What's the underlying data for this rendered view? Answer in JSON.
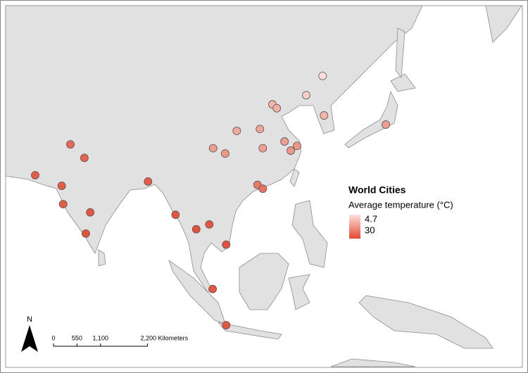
{
  "map": {
    "legend": {
      "title": "World Cities",
      "subtitle": "Average temperature (°C)",
      "range": [
        {
          "value": 4.7,
          "label": "4.7"
        },
        {
          "value": 30,
          "label": "30"
        }
      ],
      "colors": [
        "#fde0dd",
        "#e34a33"
      ]
    },
    "north": "N",
    "scale_bar": {
      "ticks": [
        0,
        550,
        {
          "value": 1100,
          "label": "1,100"
        },
        {
          "value": 2200,
          "label": "2,200 Kilometers"
        }
      ]
    },
    "cities": [
      {
        "lon": 126.6,
        "lat": 45.5,
        "temp": 5
      },
      {
        "lon": 123.2,
        "lat": 41.5,
        "temp": 8
      },
      {
        "lon": 116.2,
        "lat": 39.6,
        "temp": 12
      },
      {
        "lon": 117.1,
        "lat": 38.8,
        "temp": 13
      },
      {
        "lon": 126.9,
        "lat": 37.3,
        "temp": 12
      },
      {
        "lon": 139.7,
        "lat": 35.4,
        "temp": 16
      },
      {
        "lon": 108.8,
        "lat": 34.1,
        "temp": 14
      },
      {
        "lon": 113.6,
        "lat": 34.5,
        "temp": 15
      },
      {
        "lon": 103.9,
        "lat": 30.5,
        "temp": 16
      },
      {
        "lon": 106.4,
        "lat": 29.4,
        "temp": 17
      },
      {
        "lon": 114.2,
        "lat": 30.5,
        "temp": 16
      },
      {
        "lon": 118.7,
        "lat": 31.9,
        "temp": 16
      },
      {
        "lon": 121.3,
        "lat": 31.0,
        "temp": 17
      },
      {
        "lon": 120.0,
        "lat": 30.0,
        "temp": 17
      },
      {
        "lon": 113.1,
        "lat": 22.9,
        "temp": 22
      },
      {
        "lon": 114.2,
        "lat": 22.1,
        "temp": 23
      },
      {
        "lon": 74.3,
        "lat": 31.3,
        "temp": 25
      },
      {
        "lon": 77.2,
        "lat": 28.5,
        "temp": 26
      },
      {
        "lon": 67.0,
        "lat": 24.9,
        "temp": 27
      },
      {
        "lon": 72.5,
        "lat": 22.7,
        "temp": 27
      },
      {
        "lon": 72.8,
        "lat": 18.9,
        "temp": 27
      },
      {
        "lon": 78.4,
        "lat": 17.2,
        "temp": 28
      },
      {
        "lon": 77.5,
        "lat": 12.8,
        "temp": 29
      },
      {
        "lon": 90.4,
        "lat": 23.6,
        "temp": 27
      },
      {
        "lon": 96.1,
        "lat": 16.7,
        "temp": 28
      },
      {
        "lon": 100.4,
        "lat": 13.7,
        "temp": 29
      },
      {
        "lon": 103.1,
        "lat": 14.7,
        "temp": 28
      },
      {
        "lon": 106.6,
        "lat": 10.5,
        "temp": 29
      },
      {
        "lon": 103.8,
        "lat": 1.3,
        "temp": 28
      },
      {
        "lon": 106.6,
        "lat": -6.2,
        "temp": 28
      }
    ]
  }
}
